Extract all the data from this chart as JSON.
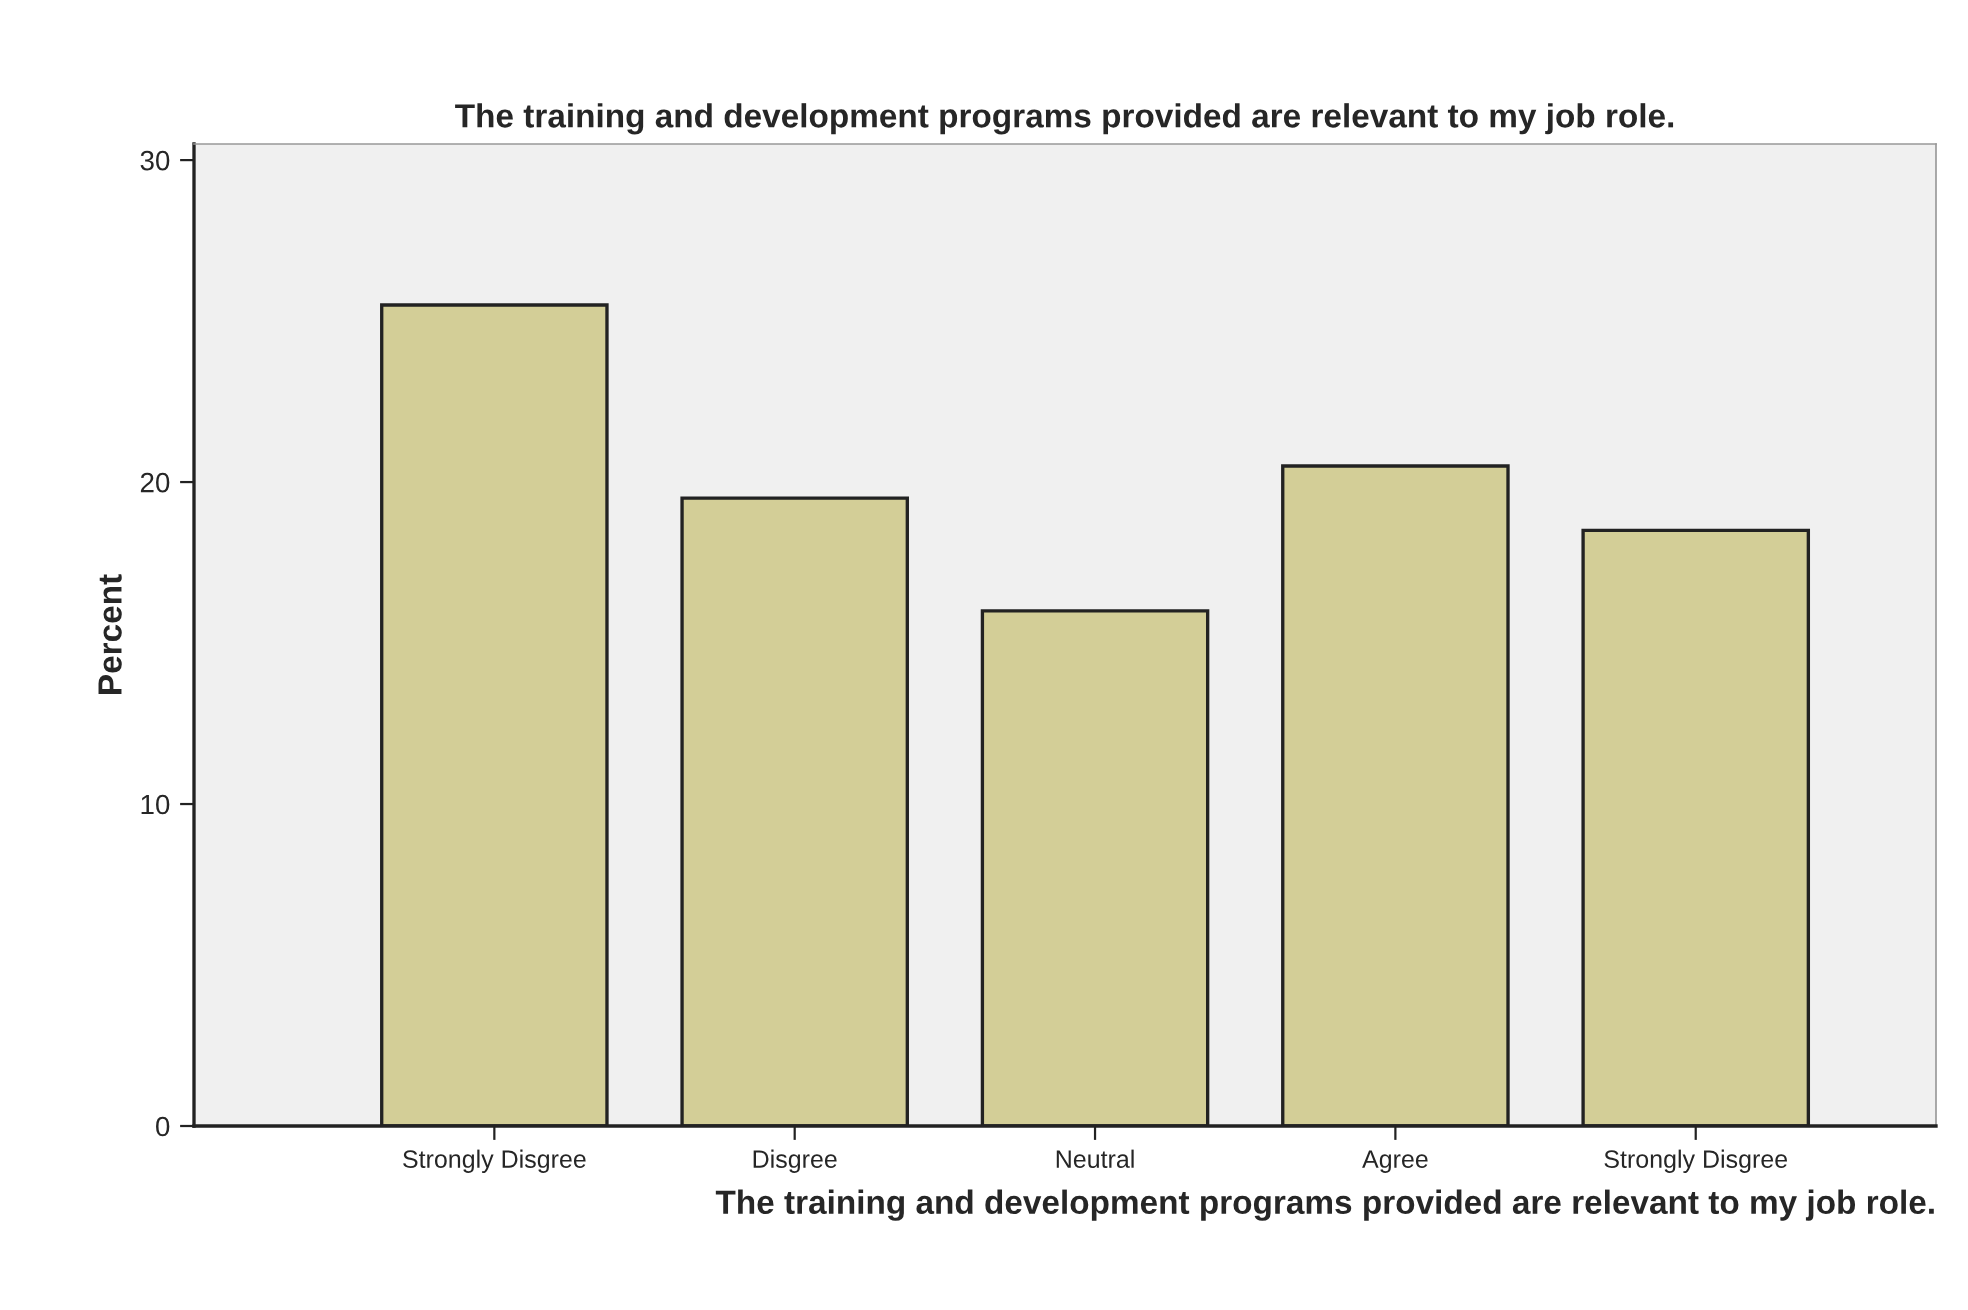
{
  "chart_data": {
    "type": "bar",
    "title": "The training and development programs provided are relevant to my job role.",
    "xlabel": "The training and development programs provided are relevant to my job role.",
    "ylabel": "Percent",
    "categories": [
      "Strongly Disgree",
      "Disgree",
      "Neutral",
      "Agree",
      "Strongly Disgree"
    ],
    "values": [
      25.5,
      19.5,
      16.0,
      20.5,
      18.5
    ],
    "color": "#d3ce97",
    "ylim": [
      0,
      30.5
    ],
    "yticks": [
      0,
      10,
      20,
      30
    ],
    "grid": false,
    "legend": false
  }
}
